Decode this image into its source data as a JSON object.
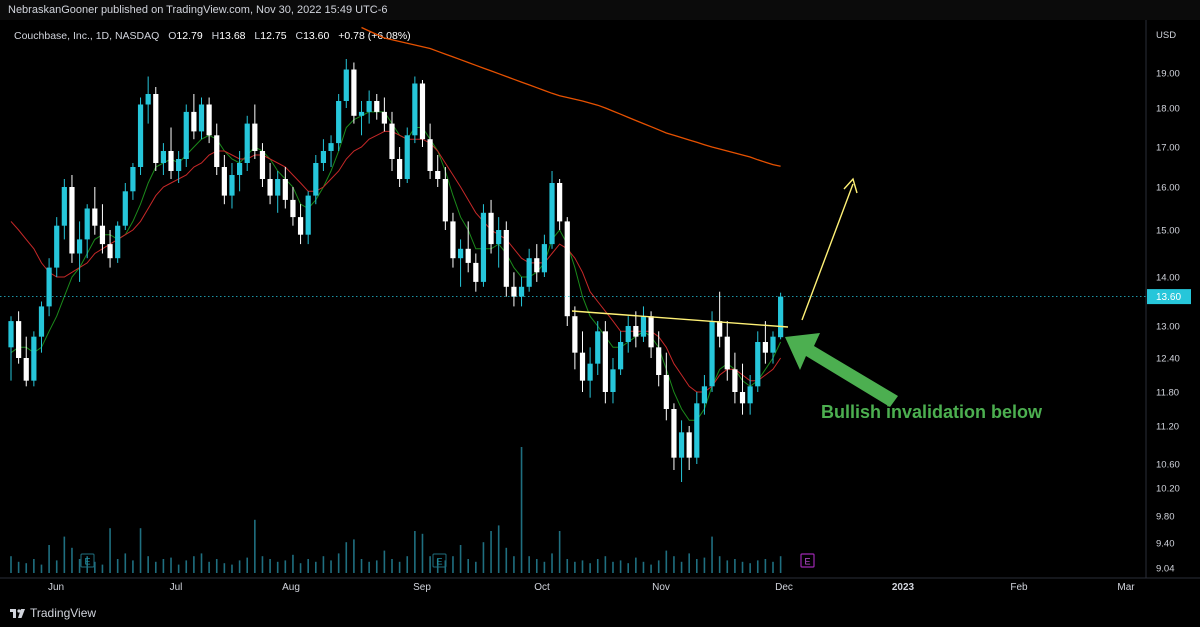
{
  "header": {
    "publisher_line": "NebraskanGooner published on TradingView.com, Nov 30, 2022 15:49 UTC-6"
  },
  "legend": {
    "symbol": "Couchbase, Inc., 1D, NASDAQ",
    "o_label": "O",
    "o_value": "12.79",
    "h_label": "H",
    "h_value": "13.68",
    "l_label": "L",
    "l_value": "12.75",
    "c_label": "C",
    "c_value": "13.60",
    "change": "+0.78 (+6.08%)"
  },
  "footer": {
    "brand": "TradingView"
  },
  "colors": {
    "bull": "#26c6da",
    "bear": "#ffffff",
    "ma_fast": "#1b8a1b",
    "ma_mid": "#c62828",
    "ma_slow": "#e65100",
    "annotation_yellow": "#fff176",
    "annotation_green": "#4caf50",
    "earnings": "#9c27b0",
    "volume": "#1f6f80"
  },
  "chart_data": {
    "type": "candlestick",
    "currency": "USD",
    "ylim": [
      9.04,
      20.1
    ],
    "y_ticks": [
      "19.00",
      "18.00",
      "17.00",
      "16.00",
      "15.00",
      "14.00",
      "13.00",
      "12.40",
      "11.80",
      "11.20",
      "10.60",
      "10.20",
      "9.80",
      "9.40",
      "9.04"
    ],
    "last_price": "13.60",
    "x_ticks": [
      "Jun",
      "Jul",
      "Aug",
      "Sep",
      "Oct",
      "Nov",
      "Dec",
      "2023",
      "Feb",
      "Mar"
    ],
    "candles": [
      {
        "o": 12.6,
        "h": 13.2,
        "l": 12.0,
        "c": 13.1
      },
      {
        "o": 13.1,
        "h": 13.3,
        "l": 12.3,
        "c": 12.4
      },
      {
        "o": 12.4,
        "h": 12.8,
        "l": 11.9,
        "c": 12.0
      },
      {
        "o": 12.0,
        "h": 12.9,
        "l": 11.9,
        "c": 12.8
      },
      {
        "o": 12.8,
        "h": 13.5,
        "l": 12.5,
        "c": 13.4
      },
      {
        "o": 13.4,
        "h": 14.4,
        "l": 13.2,
        "c": 14.2
      },
      {
        "o": 14.2,
        "h": 15.3,
        "l": 14.0,
        "c": 15.1
      },
      {
        "o": 15.1,
        "h": 16.2,
        "l": 14.8,
        "c": 16.0
      },
      {
        "o": 16.0,
        "h": 16.3,
        "l": 14.3,
        "c": 14.5
      },
      {
        "o": 14.5,
        "h": 15.2,
        "l": 13.9,
        "c": 14.8
      },
      {
        "o": 14.8,
        "h": 15.6,
        "l": 14.4,
        "c": 15.5
      },
      {
        "o": 15.5,
        "h": 16.0,
        "l": 14.9,
        "c": 15.1
      },
      {
        "o": 15.1,
        "h": 15.6,
        "l": 14.5,
        "c": 14.7
      },
      {
        "o": 14.7,
        "h": 15.0,
        "l": 14.2,
        "c": 14.4
      },
      {
        "o": 14.4,
        "h": 15.2,
        "l": 14.3,
        "c": 15.1
      },
      {
        "o": 15.1,
        "h": 16.1,
        "l": 15.0,
        "c": 15.9
      },
      {
        "o": 15.9,
        "h": 16.6,
        "l": 15.7,
        "c": 16.5
      },
      {
        "o": 16.5,
        "h": 18.3,
        "l": 16.3,
        "c": 18.1
      },
      {
        "o": 18.1,
        "h": 18.9,
        "l": 17.6,
        "c": 18.4
      },
      {
        "o": 18.4,
        "h": 18.6,
        "l": 16.4,
        "c": 16.6
      },
      {
        "o": 16.6,
        "h": 17.1,
        "l": 16.3,
        "c": 16.9
      },
      {
        "o": 16.9,
        "h": 17.5,
        "l": 16.2,
        "c": 16.4
      },
      {
        "o": 16.4,
        "h": 16.9,
        "l": 16.1,
        "c": 16.7
      },
      {
        "o": 16.7,
        "h": 18.1,
        "l": 16.5,
        "c": 17.9
      },
      {
        "o": 17.9,
        "h": 18.4,
        "l": 17.2,
        "c": 17.4
      },
      {
        "o": 17.4,
        "h": 18.3,
        "l": 17.2,
        "c": 18.1
      },
      {
        "o": 18.1,
        "h": 18.3,
        "l": 17.1,
        "c": 17.3
      },
      {
        "o": 17.3,
        "h": 17.6,
        "l": 16.3,
        "c": 16.5
      },
      {
        "o": 16.5,
        "h": 16.8,
        "l": 15.6,
        "c": 15.8
      },
      {
        "o": 15.8,
        "h": 16.6,
        "l": 15.5,
        "c": 16.3
      },
      {
        "o": 16.3,
        "h": 16.9,
        "l": 15.9,
        "c": 16.6
      },
      {
        "o": 16.6,
        "h": 17.8,
        "l": 16.4,
        "c": 17.6
      },
      {
        "o": 17.6,
        "h": 18.1,
        "l": 16.7,
        "c": 16.9
      },
      {
        "o": 16.9,
        "h": 17.1,
        "l": 16.0,
        "c": 16.2
      },
      {
        "o": 16.2,
        "h": 16.6,
        "l": 15.6,
        "c": 15.8
      },
      {
        "o": 15.8,
        "h": 16.4,
        "l": 15.4,
        "c": 16.2
      },
      {
        "o": 16.2,
        "h": 16.5,
        "l": 15.5,
        "c": 15.7
      },
      {
        "o": 15.7,
        "h": 16.0,
        "l": 15.1,
        "c": 15.3
      },
      {
        "o": 15.3,
        "h": 15.6,
        "l": 14.7,
        "c": 14.9
      },
      {
        "o": 14.9,
        "h": 15.9,
        "l": 14.7,
        "c": 15.8
      },
      {
        "o": 15.8,
        "h": 16.8,
        "l": 15.6,
        "c": 16.6
      },
      {
        "o": 16.6,
        "h": 17.2,
        "l": 16.4,
        "c": 16.9
      },
      {
        "o": 16.9,
        "h": 17.3,
        "l": 16.5,
        "c": 17.1
      },
      {
        "o": 17.1,
        "h": 18.4,
        "l": 16.9,
        "c": 18.2
      },
      {
        "o": 18.2,
        "h": 19.4,
        "l": 18.0,
        "c": 19.1
      },
      {
        "o": 19.1,
        "h": 19.3,
        "l": 17.6,
        "c": 17.8
      },
      {
        "o": 17.8,
        "h": 18.2,
        "l": 17.3,
        "c": 17.9
      },
      {
        "o": 17.9,
        "h": 18.5,
        "l": 17.6,
        "c": 18.2
      },
      {
        "o": 18.2,
        "h": 18.4,
        "l": 17.7,
        "c": 17.9
      },
      {
        "o": 17.9,
        "h": 18.3,
        "l": 17.4,
        "c": 17.6
      },
      {
        "o": 17.6,
        "h": 17.9,
        "l": 16.4,
        "c": 16.7
      },
      {
        "o": 16.7,
        "h": 17.0,
        "l": 16.0,
        "c": 16.2
      },
      {
        "o": 16.2,
        "h": 17.5,
        "l": 16.1,
        "c": 17.3
      },
      {
        "o": 17.3,
        "h": 18.9,
        "l": 17.1,
        "c": 18.7
      },
      {
        "o": 18.7,
        "h": 18.8,
        "l": 17.0,
        "c": 17.2
      },
      {
        "o": 17.2,
        "h": 17.6,
        "l": 16.2,
        "c": 16.4
      },
      {
        "o": 16.4,
        "h": 16.8,
        "l": 16.0,
        "c": 16.2
      },
      {
        "o": 16.2,
        "h": 16.5,
        "l": 15.0,
        "c": 15.2
      },
      {
        "o": 15.2,
        "h": 15.4,
        "l": 14.2,
        "c": 14.4
      },
      {
        "o": 14.4,
        "h": 14.8,
        "l": 13.8,
        "c": 14.6
      },
      {
        "o": 14.6,
        "h": 15.2,
        "l": 14.1,
        "c": 14.3
      },
      {
        "o": 14.3,
        "h": 14.5,
        "l": 13.7,
        "c": 13.9
      },
      {
        "o": 13.9,
        "h": 15.6,
        "l": 13.8,
        "c": 15.4
      },
      {
        "o": 15.4,
        "h": 15.7,
        "l": 14.5,
        "c": 14.7
      },
      {
        "o": 14.7,
        "h": 15.3,
        "l": 14.2,
        "c": 15.0
      },
      {
        "o": 15.0,
        "h": 15.2,
        "l": 13.6,
        "c": 13.8
      },
      {
        "o": 13.8,
        "h": 14.1,
        "l": 13.4,
        "c": 13.6
      },
      {
        "o": 13.6,
        "h": 14.0,
        "l": 13.4,
        "c": 13.8
      },
      {
        "o": 13.8,
        "h": 14.6,
        "l": 13.7,
        "c": 14.4
      },
      {
        "o": 14.4,
        "h": 14.7,
        "l": 13.9,
        "c": 14.1
      },
      {
        "o": 14.1,
        "h": 14.9,
        "l": 14.0,
        "c": 14.7
      },
      {
        "o": 14.7,
        "h": 16.4,
        "l": 14.6,
        "c": 16.1
      },
      {
        "o": 16.1,
        "h": 16.2,
        "l": 15.0,
        "c": 15.2
      },
      {
        "o": 15.2,
        "h": 15.3,
        "l": 13.0,
        "c": 13.2
      },
      {
        "o": 13.2,
        "h": 13.4,
        "l": 12.2,
        "c": 12.5
      },
      {
        "o": 12.5,
        "h": 12.9,
        "l": 11.8,
        "c": 12.0
      },
      {
        "o": 12.0,
        "h": 12.6,
        "l": 11.7,
        "c": 12.3
      },
      {
        "o": 12.3,
        "h": 13.1,
        "l": 12.1,
        "c": 12.9
      },
      {
        "o": 12.9,
        "h": 13.1,
        "l": 11.6,
        "c": 11.8
      },
      {
        "o": 11.8,
        "h": 12.4,
        "l": 11.6,
        "c": 12.2
      },
      {
        "o": 12.2,
        "h": 12.9,
        "l": 12.1,
        "c": 12.7
      },
      {
        "o": 12.7,
        "h": 13.2,
        "l": 12.5,
        "c": 13.0
      },
      {
        "o": 13.0,
        "h": 13.3,
        "l": 12.6,
        "c": 12.8
      },
      {
        "o": 12.8,
        "h": 13.4,
        "l": 12.7,
        "c": 13.2
      },
      {
        "o": 13.2,
        "h": 13.3,
        "l": 12.4,
        "c": 12.6
      },
      {
        "o": 12.6,
        "h": 12.9,
        "l": 11.9,
        "c": 12.1
      },
      {
        "o": 12.1,
        "h": 12.5,
        "l": 11.3,
        "c": 11.5
      },
      {
        "o": 11.5,
        "h": 11.6,
        "l": 10.5,
        "c": 10.7
      },
      {
        "o": 10.7,
        "h": 11.3,
        "l": 10.3,
        "c": 11.1
      },
      {
        "o": 11.1,
        "h": 11.2,
        "l": 10.5,
        "c": 10.7
      },
      {
        "o": 10.7,
        "h": 11.8,
        "l": 10.6,
        "c": 11.6
      },
      {
        "o": 11.6,
        "h": 12.1,
        "l": 11.4,
        "c": 11.9
      },
      {
        "o": 11.9,
        "h": 13.3,
        "l": 11.8,
        "c": 13.1
      },
      {
        "o": 13.1,
        "h": 13.7,
        "l": 12.6,
        "c": 12.8
      },
      {
        "o": 12.8,
        "h": 13.1,
        "l": 12.0,
        "c": 12.2
      },
      {
        "o": 12.2,
        "h": 12.5,
        "l": 11.6,
        "c": 11.8
      },
      {
        "o": 11.8,
        "h": 12.3,
        "l": 11.4,
        "c": 11.6
      },
      {
        "o": 11.6,
        "h": 12.1,
        "l": 11.4,
        "c": 11.9
      },
      {
        "o": 11.9,
        "h": 12.9,
        "l": 11.8,
        "c": 12.7
      },
      {
        "o": 12.7,
        "h": 13.1,
        "l": 12.3,
        "c": 12.5
      },
      {
        "o": 12.5,
        "h": 12.9,
        "l": 12.3,
        "c": 12.8
      },
      {
        "o": 12.79,
        "h": 13.68,
        "l": 12.75,
        "c": 13.6
      }
    ],
    "moving_averages": [
      {
        "color": "#1b8a1b",
        "values": [
          12.5,
          12.6,
          12.6,
          12.5,
          12.6,
          12.9,
          13.2,
          13.6,
          14.0,
          14.2,
          14.5,
          14.8,
          14.9,
          14.9,
          14.8,
          14.9,
          15.2,
          15.6,
          16.1,
          16.5,
          16.6,
          16.7,
          16.6,
          16.8,
          17.0,
          17.2,
          17.3,
          17.2,
          16.9,
          16.7,
          16.6,
          16.8,
          17.0,
          16.9,
          16.7,
          16.4,
          16.2,
          16.0,
          15.6,
          15.5,
          15.7,
          16.0,
          16.4,
          16.9,
          17.5,
          17.7,
          17.8,
          17.9,
          17.9,
          17.9,
          17.6,
          17.3,
          17.2,
          17.5,
          17.5,
          17.2,
          16.9,
          16.4,
          15.8,
          15.3,
          15.0,
          14.6,
          14.6,
          14.6,
          14.7,
          14.5,
          14.2,
          14.0,
          14.0,
          14.1,
          14.3,
          14.8,
          15.0,
          14.7,
          14.2,
          13.6,
          13.2,
          13.0,
          12.8,
          12.6,
          12.6,
          12.7,
          12.8,
          12.9,
          12.8,
          12.6,
          12.2,
          11.8,
          11.5,
          11.3,
          11.3,
          11.5,
          11.9,
          12.2,
          12.3,
          12.2,
          12.0,
          11.9,
          12.0,
          12.2,
          12.4,
          12.7
        ]
      },
      {
        "color": "#c62828",
        "values": [
          15.2,
          15.0,
          14.8,
          14.6,
          14.3,
          14.1,
          14.0,
          14.0,
          14.1,
          14.2,
          14.3,
          14.5,
          14.6,
          14.7,
          14.8,
          14.9,
          15.0,
          15.2,
          15.5,
          15.8,
          16.0,
          16.1,
          16.2,
          16.3,
          16.5,
          16.6,
          16.8,
          16.9,
          16.9,
          16.8,
          16.7,
          16.7,
          16.8,
          16.8,
          16.7,
          16.6,
          16.5,
          16.3,
          16.1,
          15.9,
          15.9,
          16.0,
          16.2,
          16.4,
          16.7,
          16.9,
          17.0,
          17.2,
          17.3,
          17.4,
          17.4,
          17.3,
          17.2,
          17.2,
          17.2,
          17.1,
          16.9,
          16.6,
          16.3,
          16.0,
          15.7,
          15.4,
          15.2,
          15.0,
          14.9,
          14.8,
          14.6,
          14.4,
          14.3,
          14.3,
          14.3,
          14.5,
          14.7,
          14.6,
          14.4,
          14.1,
          13.7,
          13.5,
          13.3,
          13.1,
          12.9,
          12.9,
          12.9,
          12.9,
          12.9,
          12.8,
          12.6,
          12.3,
          12.1,
          11.9,
          11.8,
          11.8,
          11.9,
          12.1,
          12.2,
          12.2,
          12.1,
          12.0,
          12.0,
          12.1,
          12.2,
          12.4
        ]
      },
      {
        "color": "#e65100",
        "start_index": 46,
        "values": [
          20.3,
          20.2,
          20.1,
          20.0,
          19.95,
          19.9,
          19.85,
          19.8,
          19.75,
          19.7,
          19.62,
          19.54,
          19.46,
          19.38,
          19.3,
          19.22,
          19.14,
          19.06,
          18.98,
          18.9,
          18.82,
          18.74,
          18.66,
          18.58,
          18.5,
          18.42,
          18.35,
          18.3,
          18.25,
          18.2,
          18.14,
          18.08,
          18.0,
          17.92,
          17.84,
          17.76,
          17.68,
          17.6,
          17.52,
          17.44,
          17.36,
          17.3,
          17.24,
          17.18,
          17.12,
          17.06,
          17.0,
          16.95,
          16.9,
          16.85,
          16.8,
          16.75,
          16.68,
          16.62,
          16.56,
          16.52
        ]
      }
    ],
    "volume": [
      0.12,
      0.08,
      0.07,
      0.1,
      0.06,
      0.2,
      0.09,
      0.26,
      0.18,
      0.1,
      0.12,
      0.08,
      0.06,
      0.32,
      0.1,
      0.14,
      0.09,
      0.32,
      0.12,
      0.08,
      0.1,
      0.11,
      0.06,
      0.09,
      0.12,
      0.14,
      0.08,
      0.1,
      0.07,
      0.06,
      0.09,
      0.11,
      0.38,
      0.12,
      0.1,
      0.08,
      0.09,
      0.13,
      0.07,
      0.1,
      0.08,
      0.12,
      0.09,
      0.14,
      0.22,
      0.24,
      0.1,
      0.08,
      0.09,
      0.16,
      0.1,
      0.08,
      0.12,
      0.3,
      0.28,
      0.12,
      0.1,
      0.09,
      0.12,
      0.2,
      0.1,
      0.08,
      0.22,
      0.3,
      0.34,
      0.18,
      0.12,
      0.9,
      0.12,
      0.1,
      0.08,
      0.14,
      0.3,
      0.1,
      0.08,
      0.09,
      0.07,
      0.1,
      0.12,
      0.08,
      0.09,
      0.07,
      0.11,
      0.08,
      0.06,
      0.09,
      0.16,
      0.12,
      0.08,
      0.14,
      0.1,
      0.11,
      0.26,
      0.12,
      0.09,
      0.1,
      0.08,
      0.07,
      0.09,
      0.1,
      0.08,
      0.12
    ]
  },
  "annotation": {
    "text": "Bullish invalidation below"
  }
}
